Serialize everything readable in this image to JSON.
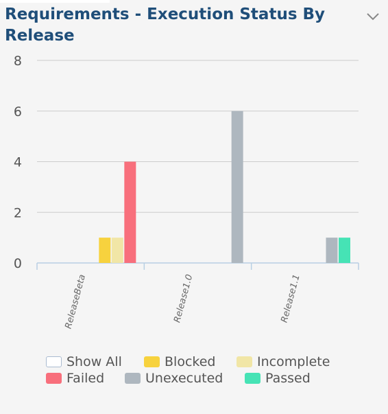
{
  "title": "Requirements - Execution Status By Release",
  "chevron_icon": "chevron-down-icon",
  "chart_data": {
    "type": "bar",
    "categories": [
      "ReleaseBeta",
      "Release1.0",
      "Release1.1"
    ],
    "ylim": [
      0,
      8
    ],
    "yticks": [
      "0",
      "2",
      "4",
      "6",
      "8"
    ],
    "grid": true,
    "legend_position": "bottom",
    "series": [
      {
        "name": "Blocked",
        "color": "#f7d23e",
        "values": [
          1,
          0,
          0
        ]
      },
      {
        "name": "Incomplete",
        "color": "#f1e6a6",
        "values": [
          1,
          0,
          0
        ]
      },
      {
        "name": "Failed",
        "color": "#f86f7c",
        "values": [
          4,
          0,
          0
        ]
      },
      {
        "name": "Unexecuted",
        "color": "#aeb7bf",
        "values": [
          0,
          6,
          1
        ]
      },
      {
        "name": "Passed",
        "color": "#46e3b5",
        "values": [
          0,
          0,
          1
        ]
      }
    ]
  },
  "legend": {
    "show_all": "Show All",
    "items": [
      "Blocked",
      "Incomplete",
      "Failed",
      "Unexecuted",
      "Passed"
    ]
  },
  "colors": {
    "title": "#1f4e79",
    "grid": "#cccccc",
    "axis": "#b8cfe3",
    "tick_text": "#555555"
  }
}
